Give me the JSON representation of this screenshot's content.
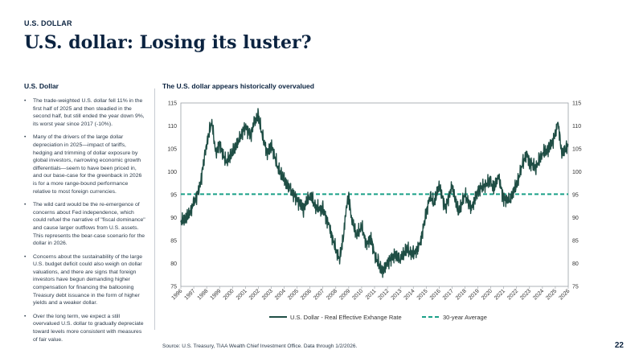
{
  "header": {
    "section_label": "U.S. DOLLAR",
    "title": "U.S. dollar: Losing its luster?"
  },
  "left_column": {
    "heading": "U.S. Dollar",
    "bullets": [
      "The trade-weighted U.S. dollar fell 11% in the first half of 2025 and then steadied in the second half, but still ended the year down 9%, its worst year since 2017 (-10%).",
      "Many of the drivers of the large dollar depreciation in 2025—impact of tariffs, hedging and trimming of dollar exposure by global investors, narrowing economic growth differentials—seem to have been priced in, and our base-case for the greenback in 2026 is for a more range-bound performance relative to most foreign currencies.",
      "The wild card would be the re-emergence of concerns about Fed independence, which could refuel the narrative of \"fiscal dominance\" and cause larger outflows from U.S. assets. This represents the bear-case scenario for the dollar in 2026.",
      "Concerns about the sustainability of the large U.S. budget deficit could also weigh on dollar valuations, and there are signs that foreign investors have begun demanding higher compensation for financing the ballooning Treasury debt issuance in the form of higher yields and a weaker dollar.",
      "Over the long term, we expect a still overvalued U.S. dollar to gradually depreciate toward levels more consistent with measures of fair value."
    ]
  },
  "chart_title": "The U.S. dollar appears historically overvalued",
  "source": "Source: U.S. Treasury, TIAA Wealth Chief Investment Office. Data through 1/2/2026.",
  "page_number": "22",
  "colors": {
    "series": "#1f4e45",
    "average": "#1aa088",
    "text": "#0b2340"
  },
  "chart_data": {
    "type": "line",
    "x_tick_labels": [
      "1996",
      "1997",
      "1998",
      "1999",
      "2000",
      "2001",
      "2002",
      "2003",
      "2004",
      "2005",
      "2006",
      "2007",
      "2008",
      "2009",
      "2010",
      "2011",
      "2012",
      "2013",
      "2014",
      "2015",
      "2016",
      "2017",
      "2018",
      "2019",
      "2020",
      "2021",
      "2022",
      "2023",
      "2024",
      "2025",
      "2026"
    ],
    "y_ticks": [
      75,
      80,
      85,
      90,
      95,
      100,
      105,
      110,
      115
    ],
    "ylim": [
      75,
      115
    ],
    "xlim": [
      1996,
      2026
    ],
    "secondary_axis": true,
    "legend": "bottom",
    "series": [
      {
        "name": "U.S. Dollar - Real Effective Exhange Rate",
        "style": "solid",
        "x": [
          1996,
          1996.5,
          1997,
          1997.5,
          1997.8,
          1998,
          1998.4,
          1998.7,
          1999,
          1999.5,
          2000,
          2000.5,
          2001,
          2001.4,
          2001.7,
          2002,
          2002.3,
          2002.7,
          2003,
          2003.5,
          2004,
          2004.5,
          2005,
          2005.5,
          2006,
          2006.5,
          2007,
          2007.5,
          2008,
          2008.3,
          2008.6,
          2008.8,
          2009,
          2009.2,
          2009.6,
          2010,
          2010.4,
          2010.7,
          2011,
          2011.3,
          2011.6,
          2012,
          2012.5,
          2013,
          2013.5,
          2014,
          2014.5,
          2015,
          2015.3,
          2015.6,
          2016,
          2016.5,
          2017,
          2017.5,
          2018,
          2018.5,
          2019,
          2019.5,
          2020,
          2020.2,
          2020.6,
          2021,
          2021.5,
          2022,
          2022.5,
          2022.8,
          2023,
          2023.5,
          2024,
          2024.5,
          2025,
          2025.2,
          2025.5,
          2025.8,
          2026
        ],
        "y": [
          89,
          90,
          93,
          97,
          103,
          106,
          111,
          104,
          106,
          102,
          104,
          107,
          110,
          108,
          111,
          112,
          108,
          104,
          106,
          101,
          98,
          96,
          94,
          92,
          95,
          92,
          92,
          88,
          83,
          81,
          86,
          92,
          95,
          90,
          86,
          88,
          84,
          86,
          82,
          80,
          78,
          80,
          82,
          81,
          83,
          82,
          84,
          91,
          95,
          93,
          97,
          92,
          97,
          91,
          95,
          92,
          96,
          97,
          98,
          96,
          99,
          94,
          94,
          97,
          102,
          104,
          102,
          101,
          104,
          105,
          108,
          111,
          104,
          105,
          106
        ]
      },
      {
        "name": "30-year Average",
        "style": "dashed",
        "x": [
          1996,
          2026
        ],
        "y": [
          95.1,
          95.1
        ]
      }
    ]
  }
}
